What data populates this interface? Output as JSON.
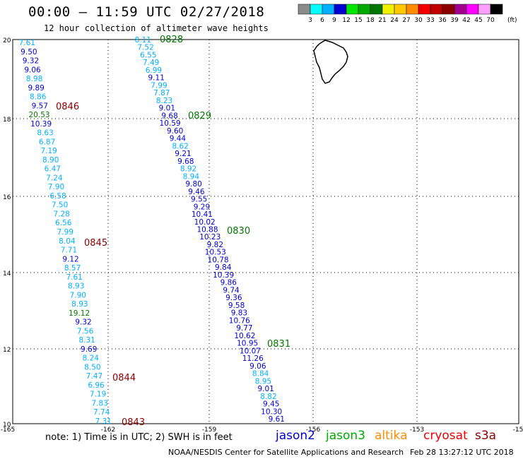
{
  "header": {
    "title": "00:00 – 11:59 UTC 02/27/2018",
    "subtitle": "12 hour collection of altimeter wave heights"
  },
  "colorbar": {
    "unit_label": "(ft)",
    "ticks": [
      "3",
      "6",
      "9",
      "12",
      "15",
      "18",
      "21",
      "24",
      "27",
      "30",
      "33",
      "36",
      "39",
      "42",
      "45",
      "70"
    ],
    "colors": [
      "#8c8c8c",
      "#00ffff",
      "#00b0ff",
      "#0000d2",
      "#00e600",
      "#00aa00",
      "#007800",
      "#f0f000",
      "#ffc800",
      "#ff8c00",
      "#f00000",
      "#c00000",
      "#8c0000",
      "#a0008c",
      "#ff00ff",
      "#ffa0ff",
      "#000000"
    ]
  },
  "map": {
    "lon_ticks": [
      "-165",
      "-162",
      "-159",
      "-156",
      "-153",
      "-15"
    ],
    "lat_ticks": [
      "20",
      "18",
      "16",
      "14",
      "12",
      "10"
    ],
    "lon_range": [
      -165,
      -150
    ],
    "lat_range": [
      10,
      20
    ]
  },
  "tracks": {
    "west": [
      {
        "v": "7.61",
        "c": "#00b0ff"
      },
      {
        "v": "9.50",
        "c": "#0000d2"
      },
      {
        "v": "9.32",
        "c": "#0000d2"
      },
      {
        "v": "9.06",
        "c": "#0000d2"
      },
      {
        "v": "8.98",
        "c": "#00b0ff"
      },
      {
        "v": "9.89",
        "c": "#0000d2"
      },
      {
        "v": "8.86",
        "c": "#00b0ff"
      },
      {
        "v": "9.57",
        "c": "#0000d2"
      },
      {
        "v": "20.53",
        "c": "#007800"
      },
      {
        "v": "10.39",
        "c": "#0000d2"
      },
      {
        "v": "8.63",
        "c": "#00b0ff"
      },
      {
        "v": "6.87",
        "c": "#00b0ff"
      },
      {
        "v": "7.19",
        "c": "#00b0ff"
      },
      {
        "v": "8.90",
        "c": "#00b0ff"
      },
      {
        "v": "6.47",
        "c": "#00b0ff"
      },
      {
        "v": "7.24",
        "c": "#00b0ff"
      },
      {
        "v": "7.90",
        "c": "#00b0ff"
      },
      {
        "v": "6.58",
        "c": "#00b0ff"
      },
      {
        "v": "7.50",
        "c": "#00b0ff"
      },
      {
        "v": "7.28",
        "c": "#00b0ff"
      },
      {
        "v": "6.56",
        "c": "#00b0ff"
      },
      {
        "v": "7.99",
        "c": "#00b0ff"
      },
      {
        "v": "8.04",
        "c": "#00b0ff"
      },
      {
        "v": "7.71",
        "c": "#00b0ff"
      },
      {
        "v": "9.12",
        "c": "#0000d2"
      },
      {
        "v": "8.57",
        "c": "#00b0ff"
      },
      {
        "v": "7.61",
        "c": "#00b0ff"
      },
      {
        "v": "8.93",
        "c": "#00b0ff"
      },
      {
        "v": "7.90",
        "c": "#00b0ff"
      },
      {
        "v": "8.93",
        "c": "#00b0ff"
      },
      {
        "v": "19.12",
        "c": "#007800"
      },
      {
        "v": "9.32",
        "c": "#0000d2"
      },
      {
        "v": "7.56",
        "c": "#00b0ff"
      },
      {
        "v": "8.31",
        "c": "#00b0ff"
      },
      {
        "v": "9.69",
        "c": "#0000d2"
      },
      {
        "v": "8.24",
        "c": "#00b0ff"
      },
      {
        "v": "8.50",
        "c": "#00b0ff"
      },
      {
        "v": "7.47",
        "c": "#00b0ff"
      },
      {
        "v": "6.96",
        "c": "#00b0ff"
      },
      {
        "v": "7.19",
        "c": "#00b0ff"
      },
      {
        "v": "7.83",
        "c": "#00b0ff"
      },
      {
        "v": "7.74",
        "c": "#00b0ff"
      },
      {
        "v": "7.31",
        "c": "#00b0ff"
      }
    ],
    "east": [
      {
        "v": "8.11",
        "c": "#00b0ff"
      },
      {
        "v": "7.52",
        "c": "#00b0ff"
      },
      {
        "v": "6.55",
        "c": "#00b0ff"
      },
      {
        "v": "7.49",
        "c": "#00b0ff"
      },
      {
        "v": "6.99",
        "c": "#00b0ff"
      },
      {
        "v": "9.11",
        "c": "#0000d2"
      },
      {
        "v": "7.99",
        "c": "#00b0ff"
      },
      {
        "v": "7.87",
        "c": "#00b0ff"
      },
      {
        "v": "8.23",
        "c": "#00b0ff"
      },
      {
        "v": "9.01",
        "c": "#0000d2"
      },
      {
        "v": "9.68",
        "c": "#0000d2"
      },
      {
        "v": "10.59",
        "c": "#0000d2"
      },
      {
        "v": "9.60",
        "c": "#0000d2"
      },
      {
        "v": "9.44",
        "c": "#0000d2"
      },
      {
        "v": "8.62",
        "c": "#00b0ff"
      },
      {
        "v": "9.21",
        "c": "#0000d2"
      },
      {
        "v": "9.68",
        "c": "#0000d2"
      },
      {
        "v": "8.92",
        "c": "#00b0ff"
      },
      {
        "v": "8.94",
        "c": "#00b0ff"
      },
      {
        "v": "9.80",
        "c": "#0000d2"
      },
      {
        "v": "9.46",
        "c": "#0000d2"
      },
      {
        "v": "9.55",
        "c": "#0000d2"
      },
      {
        "v": "9.29",
        "c": "#0000d2"
      },
      {
        "v": "10.41",
        "c": "#0000d2"
      },
      {
        "v": "10.02",
        "c": "#0000d2"
      },
      {
        "v": "10.88",
        "c": "#0000d2"
      },
      {
        "v": "10.23",
        "c": "#0000d2"
      },
      {
        "v": "9.82",
        "c": "#0000d2"
      },
      {
        "v": "10.53",
        "c": "#0000d2"
      },
      {
        "v": "10.78",
        "c": "#0000d2"
      },
      {
        "v": "9.84",
        "c": "#0000d2"
      },
      {
        "v": "10.39",
        "c": "#0000d2"
      },
      {
        "v": "9.86",
        "c": "#0000d2"
      },
      {
        "v": "9.74",
        "c": "#0000d2"
      },
      {
        "v": "9.36",
        "c": "#0000d2"
      },
      {
        "v": "9.58",
        "c": "#0000d2"
      },
      {
        "v": "9.83",
        "c": "#0000d2"
      },
      {
        "v": "10.76",
        "c": "#0000d2"
      },
      {
        "v": "9.77",
        "c": "#0000d2"
      },
      {
        "v": "10.62",
        "c": "#0000d2"
      },
      {
        "v": "10.95",
        "c": "#0000d2"
      },
      {
        "v": "10.07",
        "c": "#0000d2"
      },
      {
        "v": "11.26",
        "c": "#0000d2"
      },
      {
        "v": "9.06",
        "c": "#0000d2"
      },
      {
        "v": "8.84",
        "c": "#00b0ff"
      },
      {
        "v": "8.95",
        "c": "#00b0ff"
      },
      {
        "v": "9.01",
        "c": "#0000d2"
      },
      {
        "v": "8.82",
        "c": "#00b0ff"
      },
      {
        "v": "9.45",
        "c": "#0000d2"
      },
      {
        "v": "10.30",
        "c": "#0000d2"
      },
      {
        "v": "9.61",
        "c": "#0000d2"
      }
    ],
    "time_labels": [
      {
        "t": "0846",
        "c": "#8c0000"
      },
      {
        "t": "0845",
        "c": "#8c0000"
      },
      {
        "t": "0844",
        "c": "#8c0000"
      },
      {
        "t": "0843",
        "c": "#8c0000"
      },
      {
        "t": "0828",
        "c": "#007800"
      },
      {
        "t": "0829",
        "c": "#007800"
      },
      {
        "t": "0830",
        "c": "#007800"
      },
      {
        "t": "0831",
        "c": "#007800"
      }
    ]
  },
  "footer": {
    "note": "note: 1) Time is in UTC; 2) SWH is in feet",
    "satellites": [
      {
        "name": "jason2",
        "color": "#0000d2"
      },
      {
        "name": "jason3",
        "color": "#00aa00"
      },
      {
        "name": "altika",
        "color": "#ff8c00"
      },
      {
        "name": "cryosat",
        "color": "#f00000"
      },
      {
        "name": "s3a",
        "color": "#8c0000"
      }
    ],
    "credit": "NOAA/NESDIS Center for Satellite Applications and Research",
    "generated": "Feb 28 13:27:12 UTC 2018"
  }
}
